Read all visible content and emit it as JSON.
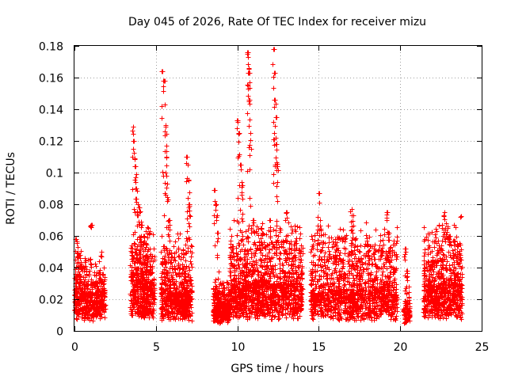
{
  "chart_data": {
    "type": "scatter",
    "title": "Day 045 of 2026, Rate Of TEC Index for receiver mizu",
    "xlabel": "GPS time / hours",
    "ylabel": "ROTI / TECUs",
    "xlim": [
      0,
      25
    ],
    "ylim": [
      0,
      0.18
    ],
    "xticks": [
      0,
      5,
      10,
      15,
      20,
      25
    ],
    "xtick_labels": [
      "0",
      "5",
      "10",
      "15",
      "20",
      "25"
    ],
    "yticks": [
      0,
      0.02,
      0.04,
      0.06,
      0.08,
      0.1,
      0.12,
      0.14,
      0.16,
      0.18
    ],
    "ytick_labels": [
      "0",
      "0.02",
      "0.04",
      "0.06",
      "0.08",
      "0.1",
      "0.12",
      "0.14",
      "0.16",
      "0.18"
    ],
    "grid": true,
    "marker": "+",
    "color": "#ff0000",
    "series": [
      {
        "name": "ROTI",
        "segments": [
          {
            "x_start": 0.0,
            "x_end": 1.9,
            "y_typical": 0.015,
            "y_spread": 0.012,
            "n": 520,
            "peaks": [
              [
                0.1,
                0.058
              ],
              [
                0.2,
                0.053
              ],
              [
                0.3,
                0.048
              ],
              [
                1.0,
                0.067
              ],
              [
                1.35,
                0.03
              ]
            ]
          },
          {
            "x_start": 3.4,
            "x_end": 4.9,
            "y_typical": 0.02,
            "y_spread": 0.02,
            "n": 520,
            "peaks": [
              [
                3.6,
                0.129
              ],
              [
                3.65,
                0.12
              ],
              [
                3.75,
                0.104
              ],
              [
                3.8,
                0.09
              ],
              [
                3.9,
                0.08
              ],
              [
                4.0,
                0.078
              ],
              [
                4.1,
                0.067
              ],
              [
                4.4,
                0.048
              ]
            ]
          },
          {
            "x_start": 5.3,
            "x_end": 7.2,
            "y_typical": 0.015,
            "y_spread": 0.018,
            "n": 600,
            "peaks": [
              [
                5.4,
                0.164
              ],
              [
                5.5,
                0.158
              ],
              [
                5.55,
                0.143
              ],
              [
                5.6,
                0.13
              ],
              [
                5.65,
                0.11
              ],
              [
                5.7,
                0.093
              ],
              [
                5.8,
                0.07
              ],
              [
                6.9,
                0.11
              ],
              [
                6.95,
                0.105
              ],
              [
                7.0,
                0.095
              ],
              [
                7.05,
                0.08
              ]
            ]
          },
          {
            "x_start": 8.5,
            "x_end": 9.5,
            "y_typical": 0.01,
            "y_spread": 0.008,
            "n": 300,
            "peaks": [
              [
                8.6,
                0.089
              ],
              [
                8.7,
                0.08
              ],
              [
                8.8,
                0.062
              ]
            ]
          },
          {
            "x_start": 9.5,
            "x_end": 14.0,
            "y_typical": 0.018,
            "y_spread": 0.02,
            "n": 1300,
            "peaks": [
              [
                10.0,
                0.133
              ],
              [
                10.1,
                0.125
              ],
              [
                10.2,
                0.105
              ],
              [
                10.3,
                0.092
              ],
              [
                10.6,
                0.176
              ],
              [
                10.65,
                0.173
              ],
              [
                10.7,
                0.163
              ],
              [
                10.75,
                0.146
              ],
              [
                10.8,
                0.125
              ],
              [
                12.2,
                0.178
              ],
              [
                12.25,
                0.163
              ],
              [
                12.3,
                0.146
              ],
              [
                12.35,
                0.135
              ],
              [
                12.4,
                0.118
              ],
              [
                12.45,
                0.104
              ],
              [
                11.0,
                0.07
              ],
              [
                11.5,
                0.065
              ],
              [
                12.0,
                0.07
              ],
              [
                13.0,
                0.075
              ],
              [
                13.5,
                0.055
              ]
            ]
          },
          {
            "x_start": 14.5,
            "x_end": 19.8,
            "y_typical": 0.016,
            "y_spread": 0.02,
            "n": 1300,
            "peaks": [
              [
                15.0,
                0.087
              ],
              [
                15.1,
                0.07
              ],
              [
                17.0,
                0.077
              ],
              [
                17.1,
                0.073
              ],
              [
                17.2,
                0.058
              ],
              [
                18.0,
                0.055
              ],
              [
                19.2,
                0.075
              ],
              [
                19.3,
                0.062
              ],
              [
                16.0,
                0.048
              ],
              [
                16.5,
                0.045
              ]
            ]
          },
          {
            "x_start": 20.2,
            "x_end": 20.6,
            "y_typical": 0.008,
            "y_spread": 0.008,
            "n": 90,
            "peaks": [
              [
                20.3,
                0.052
              ],
              [
                20.4,
                0.038
              ]
            ]
          },
          {
            "x_start": 21.4,
            "x_end": 23.8,
            "y_typical": 0.018,
            "y_spread": 0.02,
            "n": 720,
            "peaks": [
              [
                22.7,
                0.075
              ],
              [
                22.8,
                0.068
              ],
              [
                23.0,
                0.06
              ],
              [
                23.3,
                0.057
              ],
              [
                23.5,
                0.055
              ],
              [
                22.0,
                0.045
              ]
            ]
          }
        ]
      }
    ]
  }
}
